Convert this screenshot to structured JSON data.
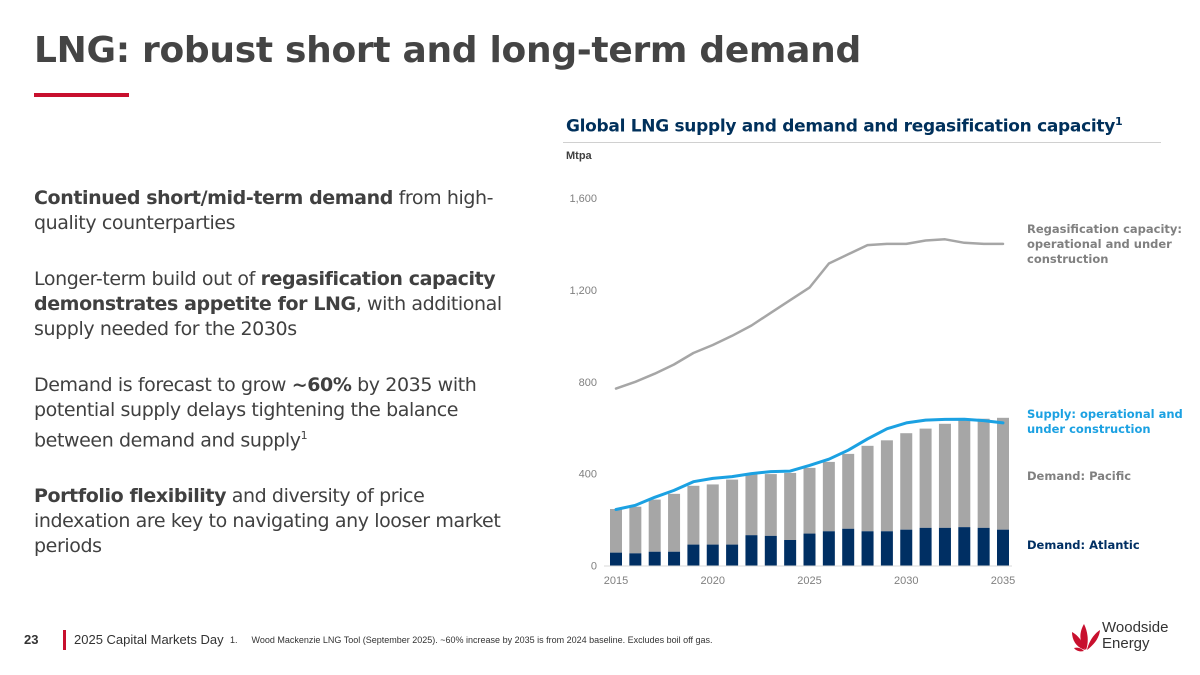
{
  "slide": {
    "title": "LNG: robust short and long-term demand",
    "bullets": [
      {
        "parts": [
          {
            "text": "Continued short/mid-term demand",
            "bold": true
          },
          {
            "text": " from high-quality counterparties",
            "bold": false
          }
        ]
      },
      {
        "parts": [
          {
            "text": "Longer-term build out of ",
            "bold": false
          },
          {
            "text": "regasification capacity demonstrates appetite for LNG",
            "bold": true
          },
          {
            "text": ", with additional supply needed for the 2030s",
            "bold": false
          }
        ]
      },
      {
        "parts": [
          {
            "text": "Demand is forecast to grow ",
            "bold": false
          },
          {
            "text": "~60%",
            "bold": true
          },
          {
            "text": " by 2035 with potential supply delays tightening the balance between demand and supply",
            "bold": false
          },
          {
            "text": "1",
            "sup": true
          }
        ]
      },
      {
        "parts": [
          {
            "text": "Portfolio flexibility",
            "bold": true
          },
          {
            "text": " and diversity of price indexation are key to navigating any looser market periods",
            "bold": false
          }
        ]
      }
    ]
  },
  "chart_header": {
    "title": "Global LNG supply and demand and regasification capacity",
    "title_sup": "1",
    "unit": "Mtpa"
  },
  "chart_data": {
    "type": "bar",
    "title": "Global LNG supply and demand and regasification capacity",
    "xlabel": "",
    "ylabel": "Mtpa",
    "ylim": [
      0,
      1600
    ],
    "yticks": [
      0,
      400,
      800,
      1200,
      1600
    ],
    "ytick_labels": [
      "0",
      "400",
      "800",
      "1,200",
      "1,600"
    ],
    "x": [
      2015,
      2016,
      2017,
      2018,
      2019,
      2020,
      2021,
      2022,
      2023,
      2024,
      2025,
      2026,
      2027,
      2028,
      2029,
      2030,
      2031,
      2032,
      2033,
      2034,
      2035
    ],
    "xtick_labels": [
      "2015",
      "2020",
      "2025",
      "2030",
      "2035"
    ],
    "grid": false,
    "legend_placement": "right",
    "series": [
      {
        "name": "Demand: Atlantic",
        "kind": "stacked-bar",
        "color": "#002f63",
        "values": [
          56,
          53,
          60,
          60,
          91,
          91,
          91,
          132,
          129,
          111,
          139,
          149,
          160,
          149,
          149,
          156,
          164,
          164,
          167,
          164,
          156
        ]
      },
      {
        "name": "Demand: Pacific",
        "kind": "stacked-bar",
        "color": "#a6a6a6",
        "values": [
          190,
          203,
          227,
          252,
          256,
          262,
          283,
          264,
          269,
          292,
          286,
          302,
          326,
          372,
          396,
          420,
          432,
          453,
          466,
          475,
          487
        ]
      },
      {
        "name": "Supply: operational and under construction",
        "kind": "line",
        "color": "#1ba1e2",
        "values": [
          244,
          262,
          297,
          327,
          365,
          379,
          387,
          400,
          409,
          411,
          436,
          463,
          502,
          551,
          595,
          621,
          633,
          636,
          637,
          631,
          621
        ]
      },
      {
        "name": "Regasification capacity: operational and under construction",
        "kind": "line",
        "color": "#a6a6a6",
        "values": [
          770,
          800,
          835,
          875,
          925,
          960,
          1000,
          1045,
          1100,
          1155,
          1210,
          1315,
          1355,
          1395,
          1400,
          1400,
          1415,
          1420,
          1405,
          1400,
          1400
        ]
      }
    ],
    "legend": [
      {
        "label": "Regasification capacity: operational and under construction",
        "color": "#808080"
      },
      {
        "label": "Supply: operational and under construction",
        "color": "#1ba1e2"
      },
      {
        "label": "Demand: Pacific",
        "color": "#808080"
      },
      {
        "label": "Demand: Atlantic",
        "color": "#002f63"
      }
    ]
  },
  "footer": {
    "page_number": "23",
    "event": "2025 Capital Markets Day",
    "footnote_number": "1.",
    "footnote_text": "Wood Mackenzie LNG Tool (September 2025). ~60% increase by 2035 is from 2024 baseline. Excludes boil off gas.",
    "logo_line1": "Woodside",
    "logo_line2": "Energy",
    "accent_color": "#c8102e"
  }
}
